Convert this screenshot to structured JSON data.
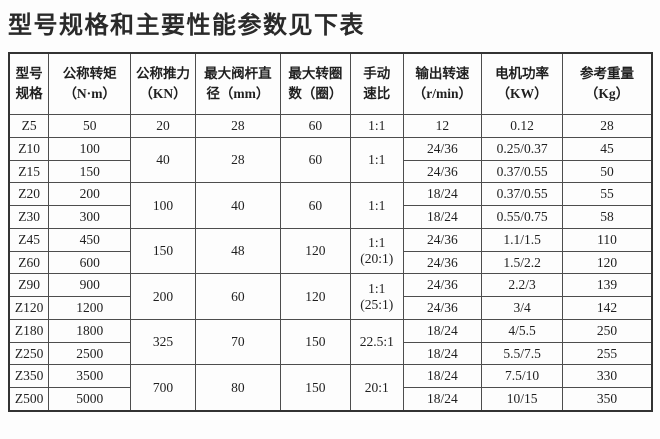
{
  "page": {
    "title": "型号规格和主要性能参数见下表"
  },
  "table": {
    "columns": [
      {
        "label": "型号\n规格"
      },
      {
        "label": "公称转矩\n（N·m）"
      },
      {
        "label": "公称推力\n（KN）"
      },
      {
        "label": "最大阀杆直\n径（mm）"
      },
      {
        "label": "最大转圈\n数（圈）"
      },
      {
        "label": "手动\n速比"
      },
      {
        "label": "输出转速\n（r/min）"
      },
      {
        "label": "电机功率\n（KW）"
      },
      {
        "label": "参考重量\n（Kg）"
      }
    ],
    "rows": [
      {
        "cells": [
          {
            "t": "Z5"
          },
          {
            "t": "50"
          },
          {
            "t": "20"
          },
          {
            "t": "28"
          },
          {
            "t": "60"
          },
          {
            "t": "1:1"
          },
          {
            "t": "12"
          },
          {
            "t": "0.12"
          },
          {
            "t": "28"
          }
        ]
      },
      {
        "cells": [
          {
            "t": "Z10"
          },
          {
            "t": "100"
          },
          {
            "t": "40",
            "rs": 2
          },
          {
            "t": "28",
            "rs": 2
          },
          {
            "t": "60",
            "rs": 2
          },
          {
            "t": "1:1",
            "rs": 2
          },
          {
            "t": "24/36"
          },
          {
            "t": "0.25/0.37"
          },
          {
            "t": "45"
          }
        ]
      },
      {
        "cells": [
          {
            "t": "Z15"
          },
          {
            "t": "150"
          },
          {
            "t": "24/36"
          },
          {
            "t": "0.37/0.55"
          },
          {
            "t": "50"
          }
        ]
      },
      {
        "cells": [
          {
            "t": "Z20"
          },
          {
            "t": "200"
          },
          {
            "t": "100",
            "rs": 2
          },
          {
            "t": "40",
            "rs": 2
          },
          {
            "t": "60",
            "rs": 2
          },
          {
            "t": "1:1",
            "rs": 2
          },
          {
            "t": "18/24"
          },
          {
            "t": "0.37/0.55"
          },
          {
            "t": "55"
          }
        ]
      },
      {
        "cells": [
          {
            "t": "Z30"
          },
          {
            "t": "300"
          },
          {
            "t": "18/24"
          },
          {
            "t": "0.55/0.75"
          },
          {
            "t": "58"
          }
        ]
      },
      {
        "cells": [
          {
            "t": "Z45"
          },
          {
            "t": "450"
          },
          {
            "t": "150",
            "rs": 2
          },
          {
            "t": "48",
            "rs": 2
          },
          {
            "t": "120",
            "rs": 2
          },
          {
            "t": "1:1\n(20:1)",
            "rs": 2
          },
          {
            "t": "24/36"
          },
          {
            "t": "1.1/1.5"
          },
          {
            "t": "110"
          }
        ]
      },
      {
        "cells": [
          {
            "t": "Z60"
          },
          {
            "t": "600"
          },
          {
            "t": "24/36"
          },
          {
            "t": "1.5/2.2"
          },
          {
            "t": "120"
          }
        ]
      },
      {
        "cells": [
          {
            "t": "Z90"
          },
          {
            "t": "900"
          },
          {
            "t": "200",
            "rs": 2
          },
          {
            "t": "60",
            "rs": 2
          },
          {
            "t": "120",
            "rs": 2
          },
          {
            "t": "1:1\n(25:1)",
            "rs": 2
          },
          {
            "t": "24/36"
          },
          {
            "t": "2.2/3"
          },
          {
            "t": "139"
          }
        ]
      },
      {
        "cells": [
          {
            "t": "Z120"
          },
          {
            "t": "1200"
          },
          {
            "t": "24/36"
          },
          {
            "t": "3/4"
          },
          {
            "t": "142"
          }
        ]
      },
      {
        "cells": [
          {
            "t": "Z180"
          },
          {
            "t": "1800"
          },
          {
            "t": "325",
            "rs": 2
          },
          {
            "t": "70",
            "rs": 2
          },
          {
            "t": "150",
            "rs": 2
          },
          {
            "t": "22.5:1",
            "rs": 2
          },
          {
            "t": "18/24"
          },
          {
            "t": "4/5.5"
          },
          {
            "t": "250"
          }
        ]
      },
      {
        "cells": [
          {
            "t": "Z250"
          },
          {
            "t": "2500"
          },
          {
            "t": "18/24"
          },
          {
            "t": "5.5/7.5"
          },
          {
            "t": "255"
          }
        ]
      },
      {
        "cells": [
          {
            "t": "Z350"
          },
          {
            "t": "3500"
          },
          {
            "t": "700",
            "rs": 2
          },
          {
            "t": "80",
            "rs": 2
          },
          {
            "t": "150",
            "rs": 2
          },
          {
            "t": "20:1",
            "rs": 2
          },
          {
            "t": "18/24"
          },
          {
            "t": "7.5/10"
          },
          {
            "t": "330"
          }
        ]
      },
      {
        "cells": [
          {
            "t": "Z500"
          },
          {
            "t": "5000"
          },
          {
            "t": "18/24"
          },
          {
            "t": "10/15"
          },
          {
            "t": "350"
          }
        ]
      }
    ]
  }
}
